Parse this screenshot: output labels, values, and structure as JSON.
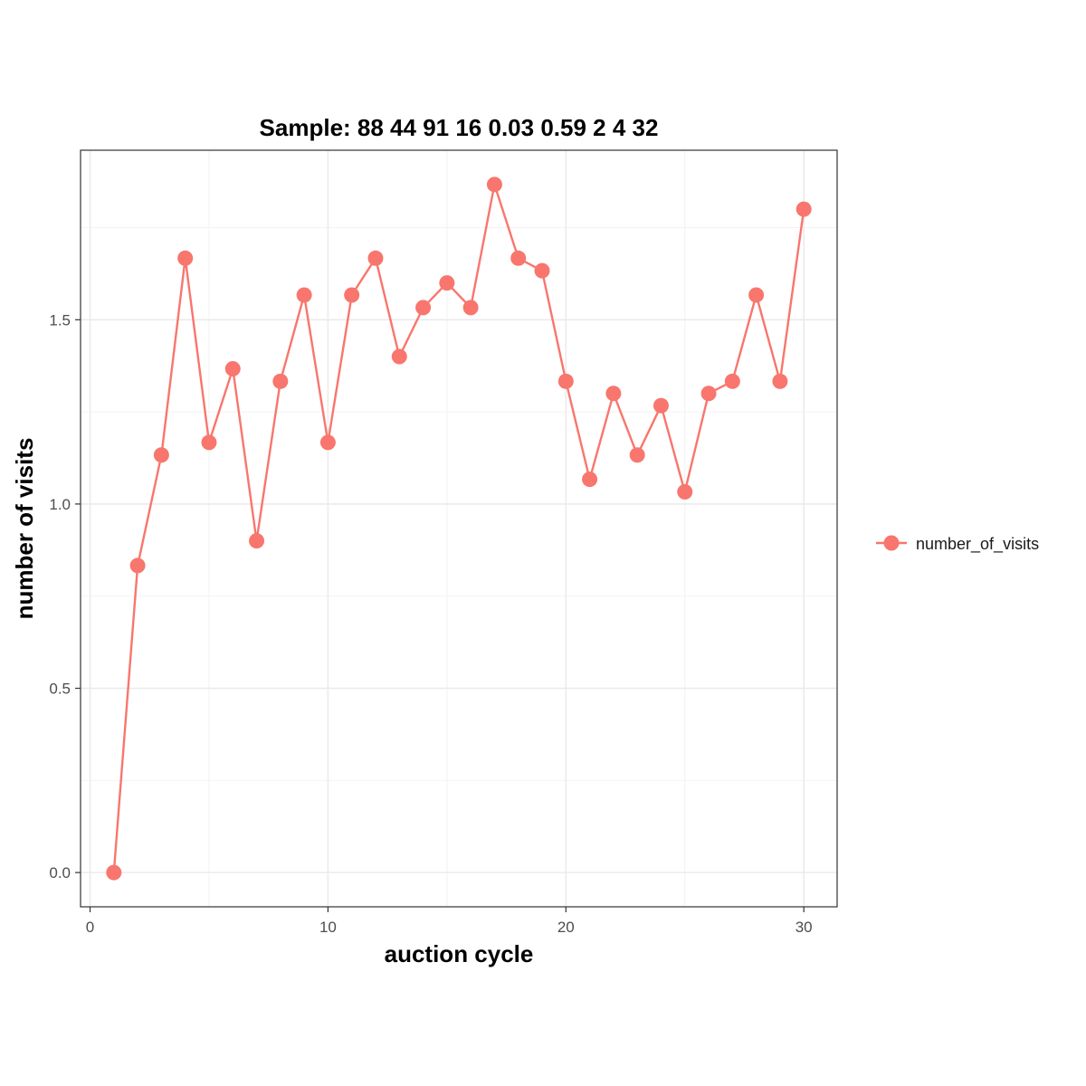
{
  "chart_data": {
    "type": "line",
    "title": "Sample: 88 44 91 16 0.03 0.59 2 4 32",
    "xlabel": "auction cycle",
    "ylabel": "number of visits",
    "xlim": [
      -0.4,
      31.4
    ],
    "ylim": [
      -0.093,
      1.96
    ],
    "x_ticks": [
      0,
      10,
      20,
      30
    ],
    "x_tick_labels": [
      "0",
      "10",
      "20",
      "30"
    ],
    "y_ticks": [
      0.0,
      0.5,
      1.0,
      1.5
    ],
    "y_tick_labels": [
      "0.0",
      "0.5",
      "1.0",
      "1.5"
    ],
    "grid": true,
    "legend_position": "right",
    "series": [
      {
        "name": "number_of_visits",
        "color": "#F8766D",
        "x": [
          1,
          2,
          3,
          4,
          5,
          6,
          7,
          8,
          9,
          10,
          11,
          12,
          13,
          14,
          15,
          16,
          17,
          18,
          19,
          20,
          21,
          22,
          23,
          24,
          25,
          26,
          27,
          28,
          29,
          30
        ],
        "y": [
          0.0,
          0.833,
          1.133,
          1.667,
          1.167,
          1.367,
          0.9,
          1.333,
          1.567,
          1.167,
          1.567,
          1.667,
          1.4,
          1.533,
          1.6,
          1.533,
          1.867,
          1.667,
          1.633,
          1.333,
          1.067,
          1.3,
          1.133,
          1.267,
          1.033,
          1.3,
          1.333,
          1.567,
          1.333,
          1.8
        ]
      }
    ]
  }
}
